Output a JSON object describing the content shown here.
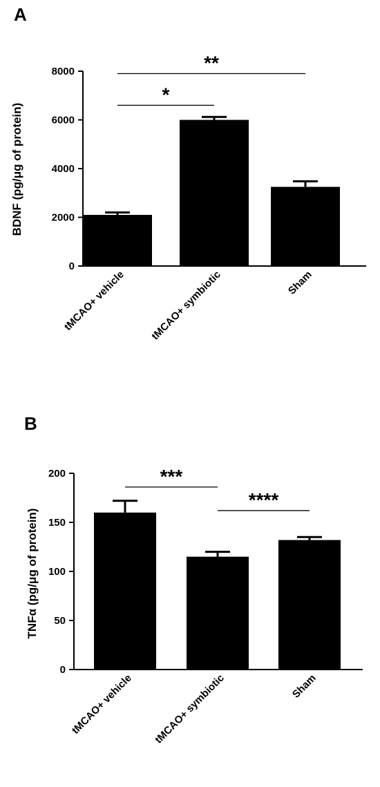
{
  "chart_data": [
    {
      "panel": "A",
      "type": "bar",
      "categories": [
        "tMCAO+ vehicle",
        "tMCAO+ symbiotic",
        "Sham"
      ],
      "values": [
        2100,
        6000,
        3250
      ],
      "errors": [
        100,
        120,
        230
      ],
      "ylabel": "BDNF (pg/μg of protein)",
      "ylim": [
        0,
        8000
      ],
      "yticks": [
        0,
        2000,
        4000,
        6000,
        8000
      ],
      "significance": [
        {
          "from": 0,
          "to": 1,
          "label": "*",
          "y": 6600
        },
        {
          "from": 0,
          "to": 2,
          "label": "**",
          "y": 7900
        }
      ]
    },
    {
      "panel": "B",
      "type": "bar",
      "categories": [
        "tMCAO+ vehicle",
        "tMCAO+ symbiotic",
        "Sham"
      ],
      "values": [
        160,
        115,
        132
      ],
      "errors": [
        12,
        5,
        3
      ],
      "ylabel": "TNFα (pg/μg of protein)",
      "ylim": [
        0,
        200
      ],
      "yticks": [
        0,
        50,
        100,
        150,
        200
      ],
      "significance": [
        {
          "from": 0,
          "to": 1,
          "label": "***",
          "y": 186
        },
        {
          "from": 1,
          "to": 2,
          "label": "****",
          "y": 162
        }
      ]
    }
  ]
}
